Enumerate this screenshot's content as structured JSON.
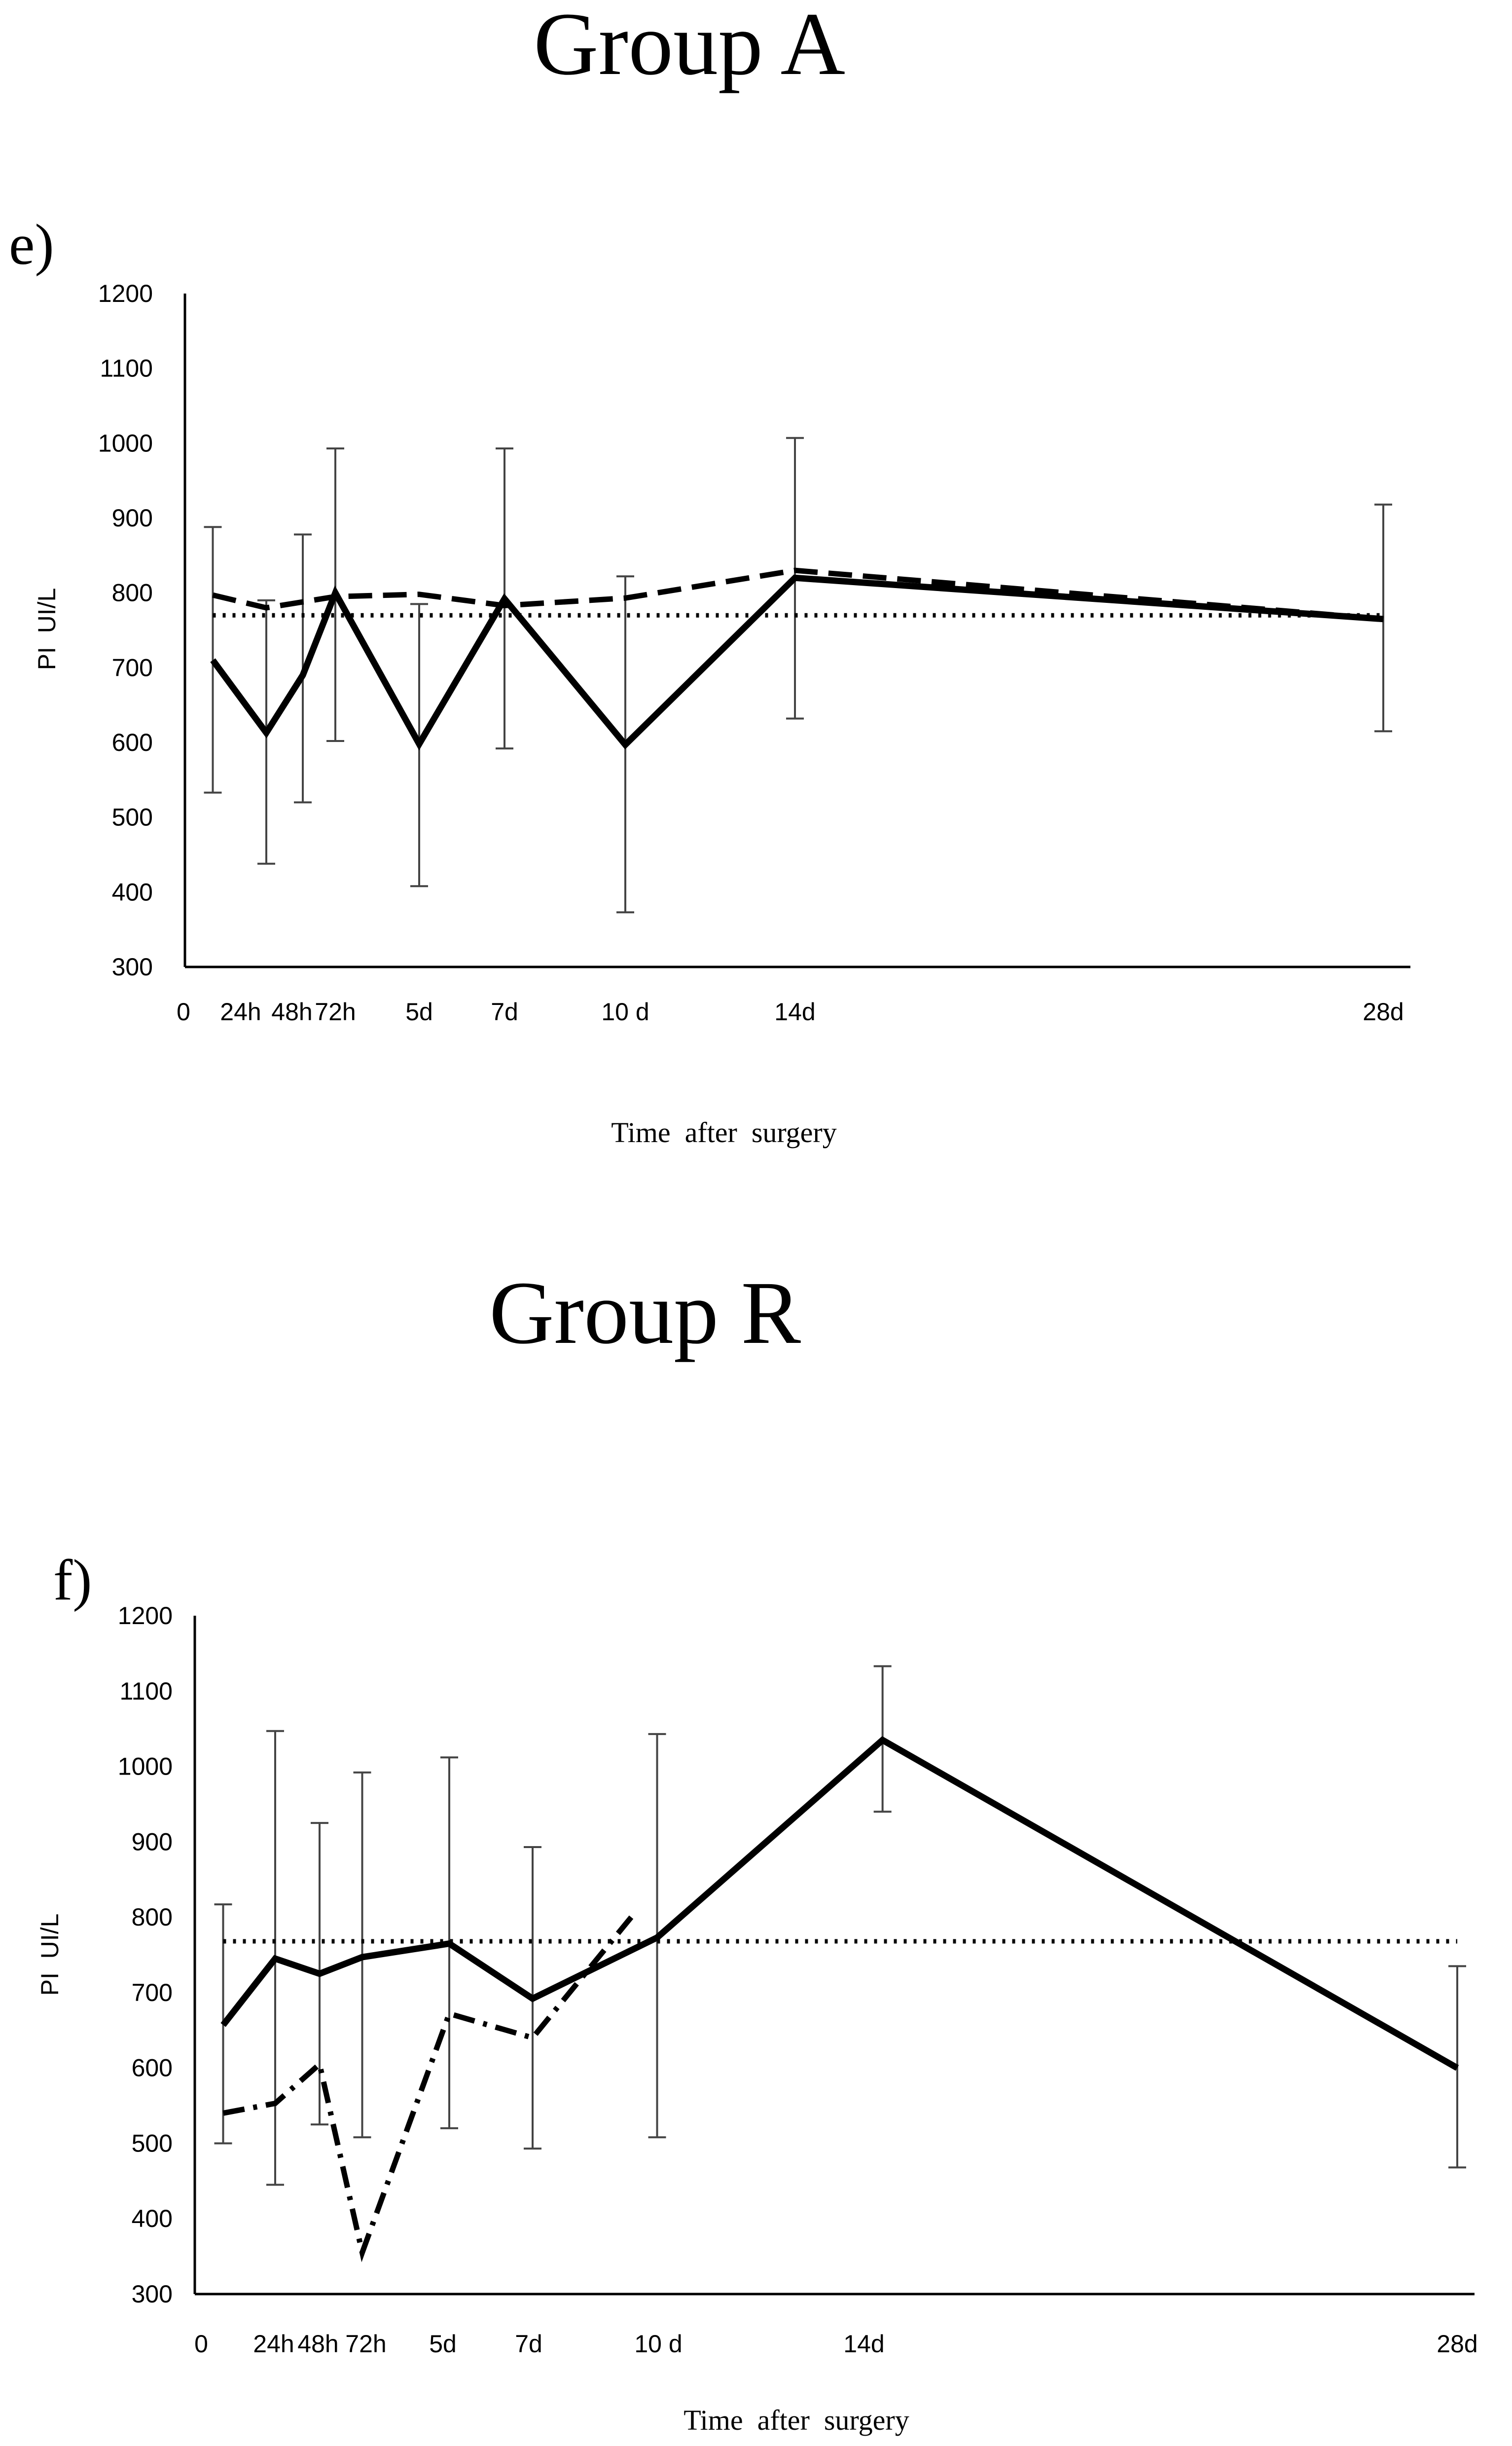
{
  "chart_data": [
    {
      "type": "line",
      "group_title": "Group A",
      "panel_label": "e)",
      "ylabel": "PI  UI/L",
      "xlabel": "Time  after  surgery",
      "ylim": [
        300,
        1200
      ],
      "yticks": [
        300,
        400,
        500,
        600,
        700,
        800,
        900,
        1000,
        1100,
        1200
      ],
      "x_positions_days": [
        0,
        1,
        2,
        3,
        5,
        7,
        10,
        14,
        28
      ],
      "x_tick_labels": [
        "0",
        "24h",
        "48h",
        "72h",
        "5d",
        "7d",
        "10 d",
        "14d",
        "28d"
      ],
      "series": [
        {
          "name": "solid",
          "style": "solid",
          "x": [
            0.5,
            1.5,
            2.25,
            3.0,
            5.0,
            7.0,
            10.0,
            14.0,
            28.0
          ],
          "values": [
            710,
            613,
            690,
            800,
            598,
            792,
            597,
            820,
            765
          ]
        },
        {
          "name": "dashed",
          "style": "dashed",
          "x": [
            0.5,
            1.5,
            3.0,
            5.0,
            7.0,
            10.0,
            14.0,
            28.0
          ],
          "values": [
            797,
            780,
            795,
            798,
            783,
            793,
            830,
            765
          ]
        },
        {
          "name": "reference",
          "style": "dotted",
          "x": [
            0.5,
            28.0
          ],
          "values": [
            770,
            770
          ]
        }
      ],
      "error_bars": [
        {
          "x": 0.5,
          "low": 533,
          "high": 888
        },
        {
          "x": 1.5,
          "low": 438,
          "high": 790
        },
        {
          "x": 2.25,
          "low": 520,
          "high": 878
        },
        {
          "x": 3.0,
          "low": 602,
          "high": 993
        },
        {
          "x": 5.0,
          "low": 408,
          "high": 785
        },
        {
          "x": 7.0,
          "low": 592,
          "high": 993
        },
        {
          "x": 10.0,
          "low": 373,
          "high": 822
        },
        {
          "x": 14.0,
          "low": 632,
          "high": 1007
        },
        {
          "x": 28.0,
          "low": 615,
          "high": 918
        }
      ]
    },
    {
      "type": "line",
      "group_title": "Group R",
      "panel_label": "f)",
      "ylabel": "PI  UI/L",
      "xlabel": "Time  after  surgery",
      "ylim": [
        300,
        1200
      ],
      "yticks": [
        300,
        400,
        500,
        600,
        700,
        800,
        900,
        1000,
        1100,
        1200
      ],
      "x_positions_days": [
        0,
        1,
        2,
        3,
        5,
        7,
        10,
        14,
        28
      ],
      "x_tick_labels": [
        "0",
        "24h",
        "48h",
        "72h",
        "5d",
        "7d",
        "10 d",
        "14d",
        "28d"
      ],
      "series": [
        {
          "name": "solid",
          "style": "solid",
          "x": [
            0.5,
            1.5,
            2.5,
            3.5,
            5.5,
            7.5,
            10.5,
            15.0,
            28.0
          ],
          "values": [
            657,
            745,
            725,
            747,
            765,
            692,
            773,
            1035,
            600
          ]
        },
        {
          "name": "dash-dot",
          "style": "dashdot",
          "x": [
            0.5,
            1.5,
            2.5,
            3.5,
            5.5,
            7.5,
            10.0
          ],
          "values": [
            540,
            553,
            605,
            355,
            672,
            640,
            800
          ]
        },
        {
          "name": "reference",
          "style": "dotted",
          "x": [
            0.5,
            28.0
          ],
          "values": [
            768,
            768
          ]
        }
      ],
      "error_bars": [
        {
          "x": 0.5,
          "low": 500,
          "high": 817
        },
        {
          "x": 1.5,
          "low": 445,
          "high": 1047
        },
        {
          "x": 2.5,
          "low": 525,
          "high": 925
        },
        {
          "x": 3.5,
          "low": 508,
          "high": 992
        },
        {
          "x": 5.5,
          "low": 520,
          "high": 1012
        },
        {
          "x": 7.5,
          "low": 493,
          "high": 893
        },
        {
          "x": 10.5,
          "low": 508,
          "high": 1043
        },
        {
          "x": 15.0,
          "low": 940,
          "high": 1133
        },
        {
          "x": 28.0,
          "low": 468,
          "high": 735
        }
      ]
    }
  ]
}
